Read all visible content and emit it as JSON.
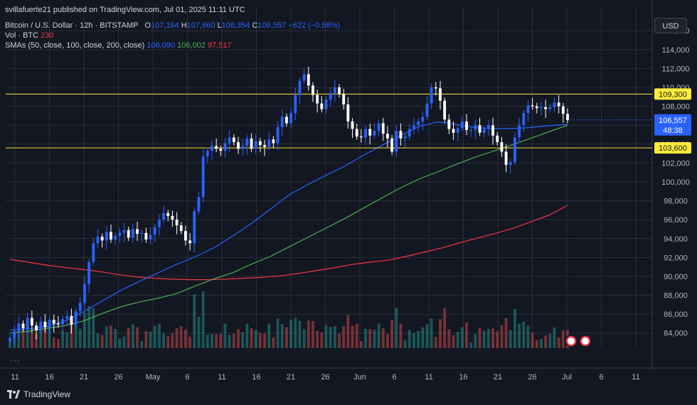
{
  "header": {
    "published": "svillafuerte21 published on TradingView.com, Jul 01, 2025 11:11 UTC",
    "symbol": "Bitcoin / U.S. Dollar · 12h · BITSTAMP",
    "o_label": "O",
    "o_value": "107,164",
    "h_label": "H",
    "h_value": "107,660",
    "l_label": "L",
    "l_value": "106,354",
    "c_label": "C",
    "c_value": "106,557",
    "change": "−622 (−0.58%)",
    "vol_label": "Vol · BTC",
    "vol_value": "230",
    "sma_label": "SMAs (50, close, 100, close, 200, close)",
    "sma50": "106,090",
    "sma100": "106,002",
    "sma200": "97,517"
  },
  "toolbar": {
    "currency_button": "USD",
    "more": "···"
  },
  "brand": {
    "name": "TradingView"
  },
  "colors": {
    "up": "#2962ff",
    "down": "#ffffff",
    "sma50": "#2962ff",
    "sma100": "#4caf50",
    "sma200": "#f23645",
    "level": "#ffeb3b"
  },
  "chart_data": {
    "type": "candlestick",
    "title": "Bitcoin / U.S. Dollar · 12h · BITSTAMP",
    "y_ticks": [
      "84,000",
      "86,000",
      "88,000",
      "90,000",
      "92,000",
      "94,000",
      "96,000",
      "98,000",
      "100,000",
      "102,000",
      "104,000",
      "106,000",
      "108,000",
      "110,000",
      "112,000",
      "114,000",
      "116,000"
    ],
    "y_tick_values": [
      84000,
      86000,
      88000,
      90000,
      92000,
      94000,
      96000,
      98000,
      100000,
      102000,
      104000,
      106000,
      108000,
      110000,
      112000,
      114000,
      116000
    ],
    "ylim": [
      82400,
      118500
    ],
    "x_ticks": [
      "11",
      "16",
      "21",
      "26",
      "May",
      "6",
      "11",
      "16",
      "21",
      "26",
      "Jun",
      "6",
      "11",
      "16",
      "21",
      "26",
      "Jul",
      "6",
      "11"
    ],
    "x_tick_dates": [
      "Apr 11",
      "Apr 16",
      "Apr 21",
      "Apr 26",
      "May 1",
      "May 6",
      "May 11",
      "May 16",
      "May 21",
      "May 26",
      "Jun 1",
      "Jun 6",
      "Jun 11",
      "Jun 16",
      "Jun 21",
      "Jun 26",
      "Jul 1",
      "Jul 6",
      "Jul 11"
    ],
    "xlim": [
      "Apr 10",
      "Jul 12"
    ],
    "horizontal_levels": [
      {
        "label": "109,300",
        "value": 109300
      },
      {
        "label": "103,600",
        "value": 103600
      }
    ],
    "current_price": {
      "label": "106,557",
      "value": 106557,
      "countdown": "48:38"
    },
    "close_series": [
      83500,
      84200,
      85000,
      84500,
      85600,
      84800,
      84300,
      85200,
      84600,
      85400,
      85000,
      84900,
      85500,
      85800,
      84900,
      86300,
      87200,
      89200,
      91500,
      93500,
      94200,
      93800,
      94700,
      93900,
      94300,
      94600,
      94900,
      94100,
      95000,
      94500,
      94600,
      93900,
      94400,
      95200,
      96000,
      96700,
      96400,
      96000,
      95400,
      94800,
      93800,
      93500,
      96900,
      98400,
      102700,
      103300,
      103800,
      103500,
      103300,
      104100,
      104700,
      104200,
      103500,
      103800,
      104600,
      103500,
      104300,
      103900,
      103700,
      104500,
      104100,
      105800,
      106900,
      106200,
      107300,
      109200,
      110700,
      111400,
      110200,
      109200,
      108300,
      107700,
      108700,
      109400,
      110000,
      109300,
      108200,
      106400,
      105600,
      104800,
      104700,
      105600,
      104900,
      105400,
      106200,
      105100,
      104600,
      103200,
      105400,
      104600,
      104800,
      105600,
      106000,
      106400,
      106900,
      108300,
      110000,
      109900,
      108600,
      106600,
      105600,
      105200,
      105700,
      106400,
      105500,
      105500,
      106000,
      105200,
      105600,
      106000,
      104900,
      104200,
      103200,
      101800,
      102100,
      104700,
      106000,
      107300,
      108100,
      108000,
      107800,
      107900,
      107700,
      107900,
      108400,
      108000,
      107200,
      106557
    ],
    "series": [
      {
        "name": "SMA 50",
        "last": "106,090",
        "values": [
          84300,
          84450,
          84700,
          85300,
          86300,
          87450,
          88550,
          89500,
          90400,
          91300,
          92100,
          93050,
          94300,
          95600,
          97100,
          98600,
          99700,
          100700,
          101650,
          102800,
          103850,
          104900,
          105850,
          106350,
          106100,
          105750,
          105650,
          105650,
          105750,
          105950,
          106090
        ]
      },
      {
        "name": "SMA 100",
        "last": "106,002",
        "values": [
          84000,
          84200,
          84500,
          84800,
          85300,
          86100,
          86800,
          87300,
          87700,
          88200,
          89000,
          89750,
          90400,
          91300,
          92100,
          93100,
          94100,
          95100,
          96100,
          97200,
          98300,
          99350,
          100300,
          101050,
          101850,
          102600,
          103250,
          103900,
          104600,
          105300,
          106002
        ]
      },
      {
        "name": "SMA 200",
        "last": "97,517",
        "values": [
          91800,
          91500,
          91200,
          90950,
          90750,
          90500,
          90200,
          89950,
          89800,
          89700,
          89650,
          89650,
          89700,
          89800,
          89900,
          90050,
          90300,
          90600,
          90900,
          91250,
          91500,
          91700,
          92100,
          92550,
          93000,
          93550,
          94050,
          94550,
          95100,
          95800,
          96500,
          97517
        ]
      }
    ]
  }
}
